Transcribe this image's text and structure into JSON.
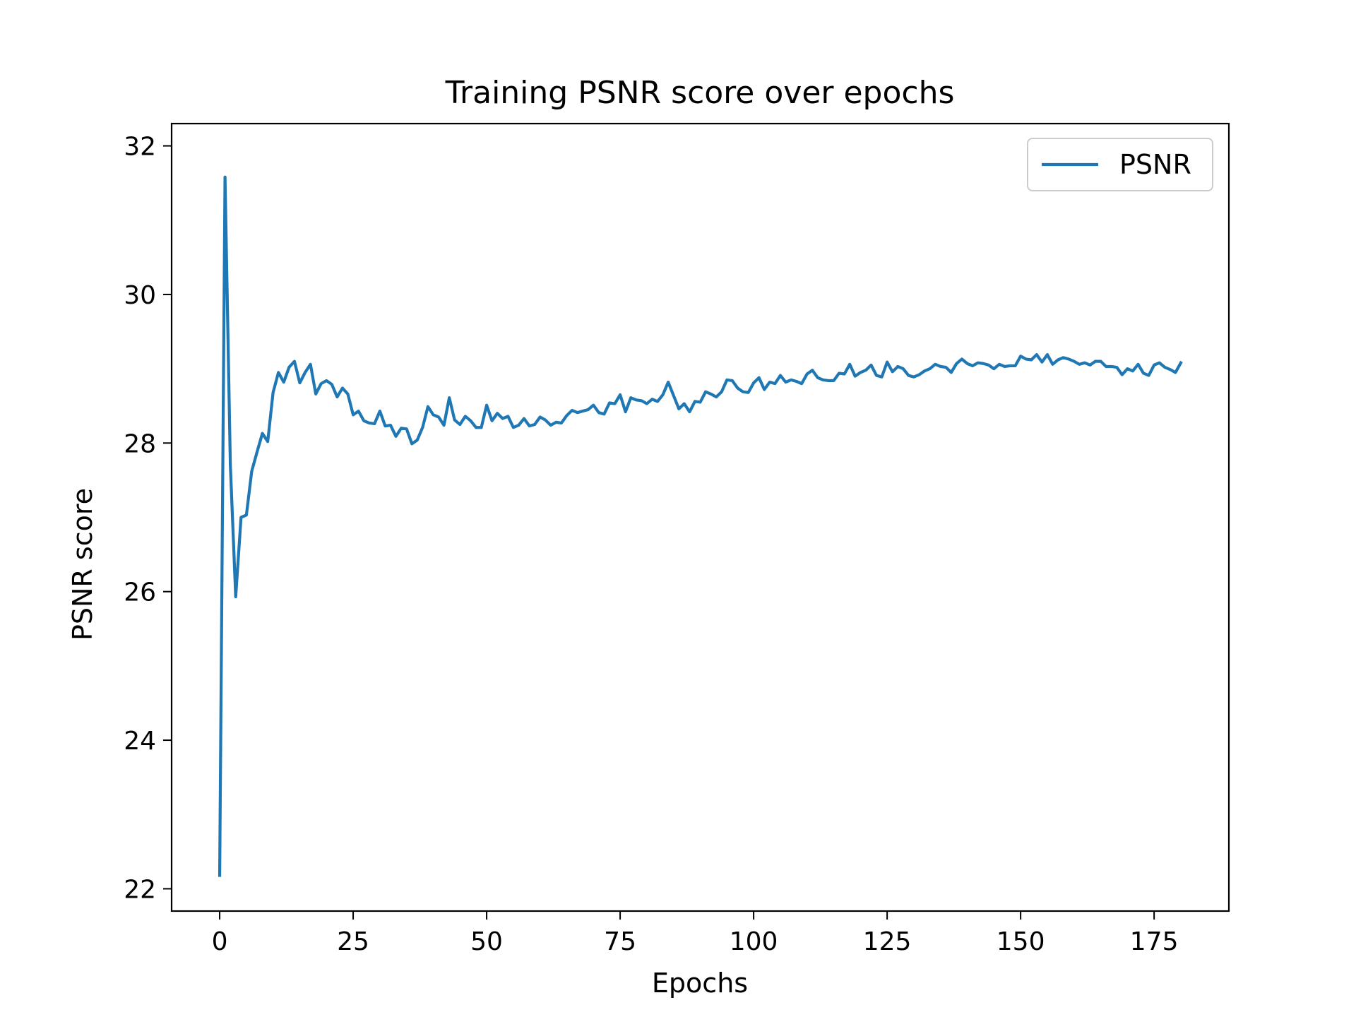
{
  "chart_data": {
    "type": "line",
    "title": "Training PSNR score over epochs",
    "xlabel": "Epochs",
    "ylabel": "PSNR score",
    "xlim": [
      -9,
      189
    ],
    "ylim": [
      21.7,
      32.3
    ],
    "xticks": [
      0,
      25,
      50,
      75,
      100,
      125,
      150,
      175
    ],
    "yticks": [
      22,
      24,
      26,
      28,
      30,
      32
    ],
    "xtick_labels": [
      "0",
      "25",
      "50",
      "75",
      "100",
      "125",
      "150",
      "175"
    ],
    "ytick_labels": [
      "22",
      "24",
      "26",
      "28",
      "30",
      "32"
    ],
    "grid": false,
    "legend_position": "upper right",
    "series": [
      {
        "name": "PSNR",
        "color": "#1f77b4",
        "x": [
          0,
          1,
          2,
          3,
          4,
          5,
          6,
          7,
          8,
          9,
          10,
          11,
          12,
          13,
          14,
          15,
          16,
          17,
          18,
          19,
          20,
          21,
          22,
          23,
          24,
          25,
          26,
          27,
          28,
          29,
          30,
          31,
          32,
          33,
          34,
          35,
          36,
          37,
          38,
          39,
          40,
          41,
          42,
          43,
          44,
          45,
          46,
          47,
          48,
          49,
          50,
          51,
          52,
          53,
          54,
          55,
          56,
          57,
          58,
          59,
          60,
          61,
          62,
          63,
          64,
          65,
          66,
          67,
          68,
          69,
          70,
          71,
          72,
          73,
          74,
          75,
          76,
          77,
          78,
          79,
          80,
          81,
          82,
          83,
          84,
          85,
          86,
          87,
          88,
          89,
          90,
          91,
          92,
          93,
          94,
          95,
          96,
          97,
          98,
          99,
          100,
          101,
          102,
          103,
          104,
          105,
          106,
          107,
          108,
          109,
          110,
          111,
          112,
          113,
          114,
          115,
          116,
          117,
          118,
          119,
          120,
          121,
          122,
          123,
          124,
          125,
          126,
          127,
          128,
          129,
          130,
          131,
          132,
          133,
          134,
          135,
          136,
          137,
          138,
          139,
          140,
          141,
          142,
          143,
          144,
          145,
          146,
          147,
          148,
          149,
          150,
          151,
          152,
          153,
          154,
          155,
          156,
          157,
          158,
          159,
          160,
          161,
          162,
          163,
          164,
          165,
          166,
          167,
          168,
          169,
          170,
          171,
          172,
          173,
          174,
          175,
          176,
          177,
          178,
          179,
          180
        ],
        "values": [
          22.18,
          31.58,
          27.7,
          25.93,
          27.0,
          27.03,
          27.62,
          27.88,
          28.13,
          28.02,
          28.68,
          28.95,
          28.82,
          29.02,
          29.1,
          28.81,
          28.95,
          29.06,
          28.66,
          28.8,
          28.84,
          28.79,
          28.62,
          28.74,
          28.66,
          28.38,
          28.43,
          28.3,
          28.27,
          28.26,
          28.43,
          28.23,
          28.24,
          28.09,
          28.2,
          28.19,
          27.99,
          28.04,
          28.21,
          28.49,
          28.38,
          28.35,
          28.24,
          28.61,
          28.31,
          28.25,
          28.36,
          28.3,
          28.21,
          28.21,
          28.51,
          28.3,
          28.4,
          28.33,
          28.36,
          28.21,
          28.24,
          28.33,
          28.23,
          28.25,
          28.35,
          28.31,
          28.24,
          28.28,
          28.27,
          28.37,
          28.44,
          28.41,
          28.43,
          28.45,
          28.51,
          28.41,
          28.39,
          28.54,
          28.53,
          28.65,
          28.42,
          28.61,
          28.58,
          28.57,
          28.53,
          28.59,
          28.56,
          28.65,
          28.82,
          28.64,
          28.46,
          28.53,
          28.42,
          28.56,
          28.55,
          28.69,
          28.66,
          28.62,
          28.69,
          28.85,
          28.84,
          28.74,
          28.69,
          28.68,
          28.81,
          28.88,
          28.72,
          28.82,
          28.8,
          28.91,
          28.82,
          28.85,
          28.83,
          28.8,
          28.93,
          28.98,
          28.88,
          28.85,
          28.84,
          28.84,
          28.94,
          28.93,
          29.06,
          28.9,
          28.95,
          28.98,
          29.05,
          28.91,
          28.89,
          29.09,
          28.96,
          29.03,
          29.0,
          28.91,
          28.89,
          28.92,
          28.97,
          29.0,
          29.06,
          29.03,
          29.02,
          28.95,
          29.07,
          29.13,
          29.07,
          29.04,
          29.08,
          29.07,
          29.05,
          29.0,
          29.06,
          29.03,
          29.04,
          29.04,
          29.17,
          29.13,
          29.12,
          29.19,
          29.09,
          29.19,
          29.06,
          29.12,
          29.15,
          29.13,
          29.1,
          29.06,
          29.08,
          29.05,
          29.1,
          29.1,
          29.03,
          29.03,
          29.02,
          28.92,
          29.0,
          28.97,
          29.06,
          28.94,
          28.91,
          29.05,
          29.08,
          29.02,
          28.99,
          28.95,
          29.08
        ]
      }
    ]
  }
}
